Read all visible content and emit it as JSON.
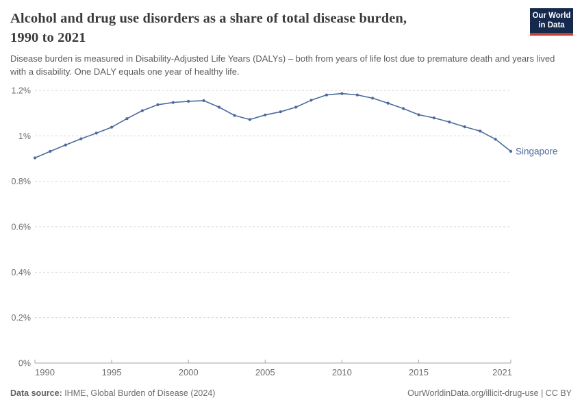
{
  "header": {
    "title_line1": "Alcohol and drug use disorders as a share of total disease burden,",
    "title_line2": "1990 to 2021",
    "subtitle": "Disease burden is measured in Disability-Adjusted Life Years (DALYs) – both from years of life lost due to premature death and years lived with a disability. One DALY equals one year of healthy life.",
    "logo": {
      "line1": "Our World",
      "line2": "in Data",
      "bg_color": "#15294d",
      "accent_color": "#cd3d2e"
    }
  },
  "chart_data": {
    "type": "line",
    "title": "Alcohol and drug use disorders as a share of total disease burden, 1990 to 2021",
    "x": [
      1990,
      1991,
      1992,
      1993,
      1994,
      1995,
      1996,
      1997,
      1998,
      1999,
      2000,
      2001,
      2002,
      2003,
      2004,
      2005,
      2006,
      2007,
      2008,
      2009,
      2010,
      2011,
      2012,
      2013,
      2014,
      2015,
      2016,
      2017,
      2018,
      2019,
      2020,
      2021
    ],
    "series": [
      {
        "name": "Singapore",
        "color": "#4c6a9c",
        "values": [
          0.903,
          0.932,
          0.96,
          0.987,
          1.012,
          1.038,
          1.076,
          1.111,
          1.137,
          1.147,
          1.152,
          1.155,
          1.126,
          1.09,
          1.072,
          1.092,
          1.106,
          1.126,
          1.157,
          1.18,
          1.186,
          1.18,
          1.166,
          1.144,
          1.12,
          1.093,
          1.079,
          1.061,
          1.04,
          1.021,
          0.985,
          0.932
        ]
      }
    ],
    "unit": "%",
    "ylim": [
      0,
      1.2
    ],
    "y_ticks": {
      "values": [
        0,
        0.2,
        0.4,
        0.6,
        0.8,
        1.0,
        1.2
      ],
      "labels": [
        "0%",
        "0.2%",
        "0.4%",
        "0.6%",
        "0.8%",
        "1%",
        "1.2%"
      ]
    },
    "x_ticks": {
      "values": [
        1990,
        1995,
        2000,
        2005,
        2010,
        2015,
        2021
      ],
      "labels": [
        "1990",
        "1995",
        "2000",
        "2005",
        "2010",
        "2015",
        "2021"
      ]
    },
    "grid": "horizontal-dashed",
    "legend_position": "end-of-line-label",
    "colors": {
      "grid": "#d6d6d6",
      "axis": "#a3a3a3",
      "tick_label": "#6e6e6e"
    }
  },
  "footer": {
    "source_label": "Data source:",
    "source_text": " IHME, Global Burden of Disease (2024)",
    "credit": "OurWorldinData.org/illicit-drug-use | CC BY"
  }
}
